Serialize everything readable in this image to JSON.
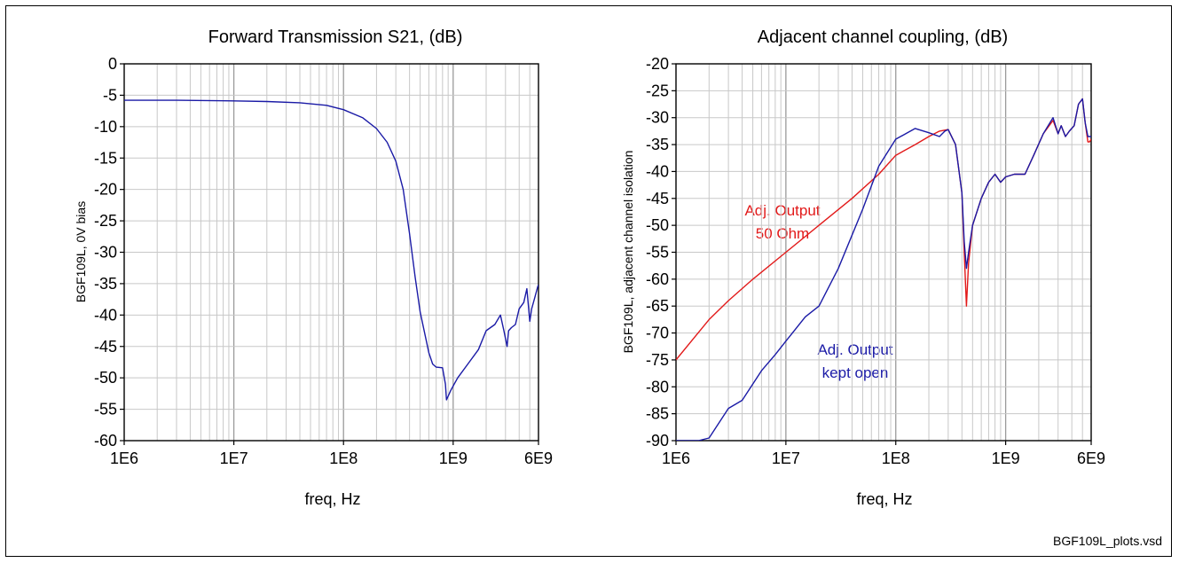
{
  "chart_data": [
    {
      "type": "line",
      "title": "Forward Transmission S21, (dB)",
      "xlabel": "freq, Hz",
      "ylabel": "BGF109L, 0V bias",
      "x_scale": "log",
      "xlim": [
        1000000,
        6000000000
      ],
      "ylim": [
        -60,
        0
      ],
      "x_ticks": [
        "1E6",
        "1E7",
        "1E8",
        "1E9",
        "6E9"
      ],
      "y_ticks": [
        "0",
        "-5",
        "-10",
        "-15",
        "-20",
        "-25",
        "-30",
        "-35",
        "-40",
        "-45",
        "-50",
        "-55",
        "-60"
      ],
      "grid": true,
      "series": [
        {
          "color": "#1a1aa6",
          "x": [
            1000000,
            3000000,
            10000000,
            20000000,
            40000000,
            70000000,
            100000000,
            150000000,
            200000000,
            250000000,
            300000000,
            350000000,
            400000000,
            450000000,
            500000000,
            600000000,
            650000000,
            700000000,
            800000000,
            850000000,
            870000000,
            950000000,
            1100000000,
            1400000000,
            1700000000,
            2000000000,
            2400000000,
            2700000000,
            2900000000,
            3100000000,
            3200000000,
            3400000000,
            3700000000,
            4000000000,
            4400000000,
            4700000000,
            5000000000,
            5200000000,
            5500000000,
            5900000000,
            6000000000
          ],
          "y": [
            -5.8,
            -5.8,
            -5.9,
            -6.0,
            -6.2,
            -6.6,
            -7.3,
            -8.6,
            -10.3,
            -12.5,
            -15.5,
            -20.0,
            -27.0,
            -34.0,
            -39.5,
            -46.0,
            -47.8,
            -48.3,
            -48.4,
            -51.0,
            -53.5,
            -52.0,
            -50.0,
            -47.5,
            -45.5,
            -42.5,
            -41.5,
            -40.0,
            -42.5,
            -45.0,
            -42.5,
            -42.0,
            -41.5,
            -39.0,
            -38.0,
            -35.8,
            -41.0,
            -39.0,
            -37.5,
            -35.5,
            -35.2
          ]
        }
      ]
    },
    {
      "type": "line",
      "title": "Adjacent channel coupling, (dB)",
      "xlabel": "freq, Hz",
      "ylabel": "BGF109L, adjacent channel isolation",
      "x_scale": "log",
      "xlim": [
        1000000,
        6000000000
      ],
      "ylim": [
        -90,
        -20
      ],
      "x_ticks": [
        "1E6",
        "1E7",
        "1E8",
        "1E9",
        "6E9"
      ],
      "y_ticks": [
        "-20",
        "-25",
        "-30",
        "-35",
        "-40",
        "-45",
        "-50",
        "-55",
        "-60",
        "-65",
        "-70",
        "-75",
        "-80",
        "-85",
        "-90"
      ],
      "grid": true,
      "series": [
        {
          "color": "#e21a1a",
          "x": [
            1000000,
            2000000,
            3000000,
            5000000,
            10000000,
            20000000,
            40000000,
            70000000,
            100000000,
            150000000,
            200000000,
            250000000,
            300000000,
            350000000,
            400000000,
            420000000,
            440000000,
            460000000,
            500000000,
            600000000,
            700000000,
            800000000,
            900000000,
            1000000000,
            1200000000,
            1500000000,
            1800000000,
            2200000000,
            2700000000,
            3000000000,
            3200000000,
            3500000000,
            3800000000,
            4200000000,
            4600000000,
            5000000000,
            5300000000,
            5600000000,
            5800000000,
            6000000000
          ],
          "y": [
            -75,
            -67.5,
            -64,
            -60,
            -55,
            -50,
            -45,
            -40.5,
            -37,
            -35,
            -33.5,
            -32.5,
            -32.2,
            -35,
            -44,
            -55,
            -65,
            -57,
            -50,
            -45,
            -42,
            -40.5,
            -42,
            -41,
            -40.5,
            -40.5,
            -37,
            -33,
            -30.5,
            -33,
            -31.5,
            -33.5,
            -32.5,
            -31.5,
            -27.5,
            -26.5,
            -31,
            -34.5,
            -34.5,
            -34.0
          ]
        },
        {
          "color": "#1a1aa6",
          "x": [
            1000000,
            1600000,
            2000000,
            3000000,
            4000000,
            6000000,
            8000000,
            10000000,
            15000000,
            20000000,
            30000000,
            50000000,
            70000000,
            100000000,
            150000000,
            200000000,
            250000000,
            280000000,
            300000000,
            350000000,
            400000000,
            420000000,
            440000000,
            460000000,
            500000000,
            600000000,
            700000000,
            800000000,
            900000000,
            1000000000,
            1200000000,
            1500000000,
            1800000000,
            2200000000,
            2700000000,
            3000000000,
            3200000000,
            3500000000,
            3800000000,
            4200000000,
            4600000000,
            5000000000,
            5300000000,
            5600000000,
            5800000000,
            6000000000
          ],
          "y": [
            -90,
            -90,
            -89.5,
            -84,
            -82.5,
            -77,
            -74,
            -71.5,
            -67,
            -65,
            -58,
            -47,
            -39,
            -34,
            -32,
            -32.8,
            -33.5,
            -32.5,
            -32.2,
            -35,
            -44,
            -53,
            -58,
            -55,
            -50,
            -45,
            -42,
            -40.5,
            -42,
            -41,
            -40.5,
            -40.5,
            -37,
            -33,
            -30,
            -33,
            -31.5,
            -33.5,
            -32.5,
            -31.5,
            -27.5,
            -26.5,
            -31,
            -33.5,
            -33.5,
            -33.5
          ]
        }
      ],
      "annotations": [
        {
          "text": "Adj. Output",
          "color": "#e21a1a"
        },
        {
          "text": "50 Ohm",
          "color": "#e21a1a"
        },
        {
          "text": "Adj. Output",
          "color": "#1a1aa6"
        },
        {
          "text": "kept open",
          "color": "#1a1aa6"
        }
      ]
    }
  ],
  "footer": {
    "filename": "BGF109L_plots.vsd"
  }
}
